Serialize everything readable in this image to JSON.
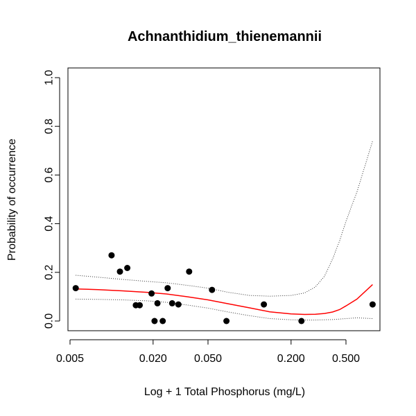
{
  "chart_data": {
    "type": "scatter",
    "title": "Achnanthidium_thienemannii",
    "xlabel": "Log + 1 Total Phosphorus (mg/L)",
    "ylabel": "Probability of occurrence",
    "x_scale": "log",
    "xlim": [
      0.005,
      0.9
    ],
    "ylim": [
      0,
      1
    ],
    "x_ticks": [
      0.005,
      0.02,
      0.05,
      0.2,
      0.5
    ],
    "x_tick_labels": [
      "0.005",
      "0.020",
      "0.050",
      "0.200",
      "0.500"
    ],
    "y_ticks": [
      0,
      0.2,
      0.4,
      0.6,
      0.8,
      1.0
    ],
    "y_tick_labels": [
      "0.0",
      "0.2",
      "0.4",
      "0.6",
      "0.8",
      "1.0"
    ],
    "grid": false,
    "colors": {
      "points": "#000000",
      "fit": "#ff0000",
      "ci": "#333333"
    },
    "series": [
      {
        "kind": "points",
        "x": [
          0.0055,
          0.01,
          0.0115,
          0.013,
          0.015,
          0.016,
          0.0195,
          0.0205,
          0.0215,
          0.0235,
          0.0255,
          0.0275,
          0.0305,
          0.0365,
          0.0535,
          0.068,
          0.127,
          0.238,
          0.78
        ],
        "y": [
          0.135,
          0.27,
          0.203,
          0.218,
          0.065,
          0.065,
          0.113,
          0.0,
          0.073,
          0.0,
          0.135,
          0.073,
          0.068,
          0.203,
          0.128,
          0.0,
          0.068,
          0.0,
          0.068
        ]
      },
      {
        "kind": "fit",
        "x": [
          0.0055,
          0.008,
          0.012,
          0.018,
          0.025,
          0.035,
          0.05,
          0.07,
          0.1,
          0.14,
          0.2,
          0.25,
          0.3,
          0.35,
          0.4,
          0.45,
          0.5,
          0.6,
          0.78
        ],
        "y": [
          0.132,
          0.129,
          0.124,
          0.118,
          0.111,
          0.1,
          0.087,
          0.071,
          0.054,
          0.038,
          0.029,
          0.027,
          0.028,
          0.031,
          0.037,
          0.047,
          0.062,
          0.09,
          0.15
        ]
      },
      {
        "kind": "ci_upper",
        "x": [
          0.0055,
          0.008,
          0.012,
          0.018,
          0.025,
          0.035,
          0.05,
          0.07,
          0.1,
          0.14,
          0.2,
          0.25,
          0.3,
          0.35,
          0.4,
          0.45,
          0.5,
          0.6,
          0.78
        ],
        "y": [
          0.188,
          0.18,
          0.171,
          0.163,
          0.157,
          0.147,
          0.135,
          0.118,
          0.105,
          0.102,
          0.105,
          0.115,
          0.14,
          0.185,
          0.255,
          0.33,
          0.41,
          0.53,
          0.74
        ]
      },
      {
        "kind": "ci_lower",
        "x": [
          0.0055,
          0.008,
          0.012,
          0.018,
          0.025,
          0.035,
          0.05,
          0.07,
          0.1,
          0.14,
          0.2,
          0.25,
          0.3,
          0.35,
          0.4,
          0.45,
          0.5,
          0.6,
          0.78
        ],
        "y": [
          0.09,
          0.089,
          0.087,
          0.083,
          0.077,
          0.066,
          0.053,
          0.037,
          0.022,
          0.01,
          0.005,
          0.004,
          0.004,
          0.005,
          0.006,
          0.008,
          0.01,
          0.013,
          0.01
        ]
      }
    ]
  }
}
